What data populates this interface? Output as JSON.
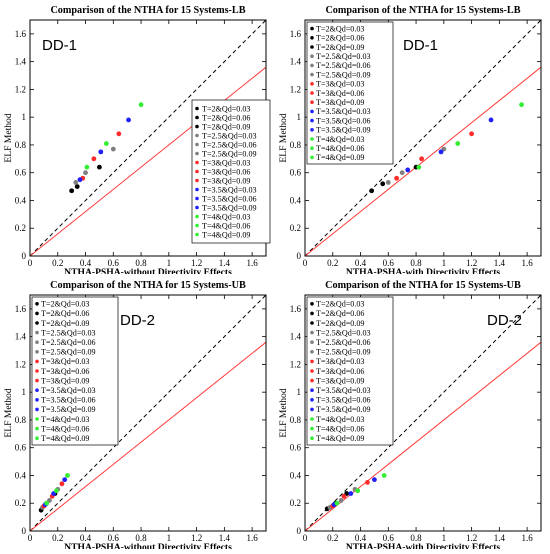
{
  "chart_data": [
    {
      "type": "scatter",
      "title": "Comparison of the NTHA for 15 Systems-LB",
      "xlabel": "NTHA-PSHA-without Directivity Effects",
      "ylabel": "ELF Method",
      "annotation": "DD-1",
      "xlim": [
        0,
        1.7
      ],
      "ylim": [
        0,
        1.7
      ],
      "xticks": [
        "0",
        "0.2",
        "0.4",
        "0.6",
        "0.8",
        "1",
        "1.2",
        "1.4",
        "1.6"
      ],
      "yticks": [
        "0",
        "0.2",
        "0.4",
        "0.6",
        "0.8",
        "1",
        "1.2",
        "1.4",
        "1.6"
      ],
      "legend_position": "right",
      "reference_lines": [
        {
          "style": "black-dashed",
          "slope": 1.0
        },
        {
          "style": "red-solid",
          "slope": 0.8
        }
      ],
      "series": [
        {
          "name": "T=2&Qd=0.03",
          "color": "#000000",
          "x": [
            0.3
          ],
          "y": [
            0.47
          ]
        },
        {
          "name": "T=2&Qd=0.06",
          "color": "#000000",
          "x": [
            0.34
          ],
          "y": [
            0.5
          ]
        },
        {
          "name": "T=2&Qd=0.09",
          "color": "#000000",
          "x": [
            0.5
          ],
          "y": [
            0.64
          ]
        },
        {
          "name": "T=2.5&Qd=0.03",
          "color": "#7f7f7f",
          "x": [
            0.33
          ],
          "y": [
            0.53
          ]
        },
        {
          "name": "T=2.5&Qd=0.06",
          "color": "#7f7f7f",
          "x": [
            0.4
          ],
          "y": [
            0.6
          ]
        },
        {
          "name": "T=2.5&Qd=0.09",
          "color": "#7f7f7f",
          "x": [
            0.6
          ],
          "y": [
            0.77
          ]
        },
        {
          "name": "T=3&Qd=0.03",
          "color": "#ff2a2a",
          "x": [
            0.38
          ],
          "y": [
            0.56
          ]
        },
        {
          "name": "T=3&Qd=0.06",
          "color": "#ff2a2a",
          "x": [
            0.46
          ],
          "y": [
            0.7
          ]
        },
        {
          "name": "T=3&Qd=0.09",
          "color": "#ff2a2a",
          "x": [
            0.64
          ],
          "y": [
            0.88
          ]
        },
        {
          "name": "T=3.5&Qd=0.03",
          "color": "#1f1fff",
          "x": [
            0.36
          ],
          "y": [
            0.55
          ]
        },
        {
          "name": "T=3.5&Qd=0.06",
          "color": "#1f1fff",
          "x": [
            0.51
          ],
          "y": [
            0.75
          ]
        },
        {
          "name": "T=3.5&Qd=0.09",
          "color": "#1f1fff",
          "x": [
            0.71
          ],
          "y": [
            0.98
          ]
        },
        {
          "name": "T=4&Qd=0.03",
          "color": "#33ee33",
          "x": [
            0.41
          ],
          "y": [
            0.64
          ]
        },
        {
          "name": "T=4&Qd=0.06",
          "color": "#33ee33",
          "x": [
            0.55
          ],
          "y": [
            0.81
          ]
        },
        {
          "name": "T=4&Qd=0.09",
          "color": "#33ee33",
          "x": [
            0.8
          ],
          "y": [
            1.09
          ]
        }
      ]
    },
    {
      "type": "scatter",
      "title": "Comparison of the NTHA for 15 Systems-LB",
      "xlabel": "NTHA-PSHA-with Directivity Effects",
      "ylabel": "ELF Method",
      "annotation": "DD-1",
      "xlim": [
        0,
        1.7
      ],
      "ylim": [
        0,
        1.7
      ],
      "xticks": [
        "0",
        "0.2",
        "0.4",
        "0.6",
        "0.8",
        "1",
        "1.2",
        "1.4",
        "1.6"
      ],
      "yticks": [
        "0",
        "0.2",
        "0.4",
        "0.6",
        "0.8",
        "1",
        "1.2",
        "1.4",
        "1.6"
      ],
      "legend_position": "top-left",
      "reference_lines": [
        {
          "style": "black-dashed",
          "slope": 1.0
        },
        {
          "style": "red-solid",
          "slope": 0.8
        }
      ],
      "series": [
        {
          "name": "T=2&Qd=0.03",
          "color": "#000000",
          "x": [
            0.48
          ],
          "y": [
            0.47
          ]
        },
        {
          "name": "T=2&Qd=0.06",
          "color": "#000000",
          "x": [
            0.56
          ],
          "y": [
            0.52
          ]
        },
        {
          "name": "T=2&Qd=0.09",
          "color": "#000000",
          "x": [
            0.8
          ],
          "y": [
            0.64
          ]
        },
        {
          "name": "T=2.5&Qd=0.03",
          "color": "#7f7f7f",
          "x": [
            0.6
          ],
          "y": [
            0.53
          ]
        },
        {
          "name": "T=2.5&Qd=0.06",
          "color": "#7f7f7f",
          "x": [
            0.7
          ],
          "y": [
            0.6
          ]
        },
        {
          "name": "T=2.5&Qd=0.09",
          "color": "#7f7f7f",
          "x": [
            1.0
          ],
          "y": [
            0.77
          ]
        },
        {
          "name": "T=3&Qd=0.03",
          "color": "#ff2a2a",
          "x": [
            0.66
          ],
          "y": [
            0.56
          ]
        },
        {
          "name": "T=3&Qd=0.06",
          "color": "#ff2a2a",
          "x": [
            0.84
          ],
          "y": [
            0.7
          ]
        },
        {
          "name": "T=3&Qd=0.09",
          "color": "#ff2a2a",
          "x": [
            1.2
          ],
          "y": [
            0.88
          ]
        },
        {
          "name": "T=3.5&Qd=0.03",
          "color": "#1f1fff",
          "x": [
            0.74
          ],
          "y": [
            0.62
          ]
        },
        {
          "name": "T=3.5&Qd=0.06",
          "color": "#1f1fff",
          "x": [
            0.98
          ],
          "y": [
            0.75
          ]
        },
        {
          "name": "T=3.5&Qd=0.09",
          "color": "#1f1fff",
          "x": [
            1.34
          ],
          "y": [
            0.98
          ]
        },
        {
          "name": "T=4&Qd=0.03",
          "color": "#33ee33",
          "x": [
            0.82
          ],
          "y": [
            0.64
          ]
        },
        {
          "name": "T=4&Qd=0.06",
          "color": "#33ee33",
          "x": [
            1.1
          ],
          "y": [
            0.81
          ]
        },
        {
          "name": "T=4&Qd=0.09",
          "color": "#33ee33",
          "x": [
            1.56
          ],
          "y": [
            1.09
          ]
        }
      ]
    },
    {
      "type": "scatter",
      "title": "Comparison of the NTHA for 15 Systems-UB",
      "xlabel": "NTHA-PSHA-without Directivity Effects",
      "ylabel": "ELF Method",
      "annotation": "DD-2",
      "xlim": [
        0,
        1.7
      ],
      "ylim": [
        0,
        1.7
      ],
      "xticks": [
        "0",
        "0.2",
        "0.4",
        "0.6",
        "0.8",
        "1",
        "1.2",
        "1.4",
        "1.6"
      ],
      "yticks": [
        "0",
        "0.2",
        "0.4",
        "0.6",
        "0.8",
        "1",
        "1.2",
        "1.4",
        "1.6"
      ],
      "legend_position": "top-left",
      "reference_lines": [
        {
          "style": "black-dashed",
          "slope": 1.0
        },
        {
          "style": "red-solid",
          "slope": 0.8
        }
      ],
      "series": [
        {
          "name": "T=2&Qd=0.03",
          "color": "#000000",
          "x": [
            0.08
          ],
          "y": [
            0.15
          ]
        },
        {
          "name": "T=2&Qd=0.06",
          "color": "#000000",
          "x": [
            0.12
          ],
          "y": [
            0.2
          ]
        },
        {
          "name": "T=2&Qd=0.09",
          "color": "#000000",
          "x": [
            0.18
          ],
          "y": [
            0.27
          ]
        },
        {
          "name": "T=2.5&Qd=0.03",
          "color": "#7f7f7f",
          "x": [
            0.09
          ],
          "y": [
            0.17
          ]
        },
        {
          "name": "T=2.5&Qd=0.06",
          "color": "#7f7f7f",
          "x": [
            0.14
          ],
          "y": [
            0.22
          ]
        },
        {
          "name": "T=2.5&Qd=0.09",
          "color": "#7f7f7f",
          "x": [
            0.2
          ],
          "y": [
            0.3
          ]
        },
        {
          "name": "T=3&Qd=0.03",
          "color": "#ff2a2a",
          "x": [
            0.1
          ],
          "y": [
            0.18
          ]
        },
        {
          "name": "T=3&Qd=0.06",
          "color": "#ff2a2a",
          "x": [
            0.16
          ],
          "y": [
            0.25
          ]
        },
        {
          "name": "T=3&Qd=0.09",
          "color": "#ff2a2a",
          "x": [
            0.23
          ],
          "y": [
            0.34
          ]
        },
        {
          "name": "T=3.5&Qd=0.03",
          "color": "#1f1fff",
          "x": [
            0.11
          ],
          "y": [
            0.19
          ]
        },
        {
          "name": "T=3.5&Qd=0.06",
          "color": "#1f1fff",
          "x": [
            0.17
          ],
          "y": [
            0.27
          ]
        },
        {
          "name": "T=3.5&Qd=0.09",
          "color": "#1f1fff",
          "x": [
            0.25
          ],
          "y": [
            0.37
          ]
        },
        {
          "name": "T=4&Qd=0.03",
          "color": "#33ee33",
          "x": [
            0.12
          ],
          "y": [
            0.2
          ]
        },
        {
          "name": "T=4&Qd=0.06",
          "color": "#33ee33",
          "x": [
            0.19
          ],
          "y": [
            0.29
          ]
        },
        {
          "name": "T=4&Qd=0.09",
          "color": "#33ee33",
          "x": [
            0.27
          ],
          "y": [
            0.4
          ]
        }
      ]
    },
    {
      "type": "scatter",
      "title": "Comparison of the NTHA for 15 Systems-UB",
      "xlabel": "NTHA-PSHA-with Directivity Effects",
      "ylabel": "ELF Method",
      "annotation": "DD-2",
      "xlim": [
        0,
        1.7
      ],
      "ylim": [
        0,
        1.7
      ],
      "xticks": [
        "0",
        "0.2",
        "0.4",
        "0.6",
        "0.8",
        "1",
        "1.2",
        "1.4",
        "1.6"
      ],
      "yticks": [
        "0",
        "0.2",
        "0.4",
        "0.6",
        "0.8",
        "1",
        "1.2",
        "1.4",
        "1.6"
      ],
      "legend_position": "top-left",
      "reference_lines": [
        {
          "style": "black-dashed",
          "slope": 1.0
        },
        {
          "style": "red-solid",
          "slope": 0.8
        }
      ],
      "series": [
        {
          "name": "T=2&Qd=0.03",
          "color": "#000000",
          "x": [
            0.16
          ],
          "y": [
            0.16
          ]
        },
        {
          "name": "T=2&Qd=0.06",
          "color": "#000000",
          "x": [
            0.22
          ],
          "y": [
            0.2
          ]
        },
        {
          "name": "T=2&Qd=0.09",
          "color": "#000000",
          "x": [
            0.3
          ],
          "y": [
            0.27
          ]
        },
        {
          "name": "T=2.5&Qd=0.03",
          "color": "#7f7f7f",
          "x": [
            0.18
          ],
          "y": [
            0.17
          ]
        },
        {
          "name": "T=2.5&Qd=0.06",
          "color": "#7f7f7f",
          "x": [
            0.26
          ],
          "y": [
            0.22
          ]
        },
        {
          "name": "T=2.5&Qd=0.09",
          "color": "#7f7f7f",
          "x": [
            0.36
          ],
          "y": [
            0.3
          ]
        },
        {
          "name": "T=3&Qd=0.03",
          "color": "#ff2a2a",
          "x": [
            0.2
          ],
          "y": [
            0.18
          ]
        },
        {
          "name": "T=3&Qd=0.06",
          "color": "#ff2a2a",
          "x": [
            0.28
          ],
          "y": [
            0.25
          ]
        },
        {
          "name": "T=3&Qd=0.09",
          "color": "#ff2a2a",
          "x": [
            0.45
          ],
          "y": [
            0.35
          ]
        },
        {
          "name": "T=3.5&Qd=0.03",
          "color": "#1f1fff",
          "x": [
            0.21
          ],
          "y": [
            0.19
          ]
        },
        {
          "name": "T=3.5&Qd=0.06",
          "color": "#1f1fff",
          "x": [
            0.33
          ],
          "y": [
            0.27
          ]
        },
        {
          "name": "T=3.5&Qd=0.09",
          "color": "#1f1fff",
          "x": [
            0.5
          ],
          "y": [
            0.37
          ]
        },
        {
          "name": "T=4&Qd=0.03",
          "color": "#33ee33",
          "x": [
            0.23
          ],
          "y": [
            0.2
          ]
        },
        {
          "name": "T=4&Qd=0.06",
          "color": "#33ee33",
          "x": [
            0.38
          ],
          "y": [
            0.29
          ]
        },
        {
          "name": "T=4&Qd=0.09",
          "color": "#33ee33",
          "x": [
            0.57
          ],
          "y": [
            0.4
          ]
        }
      ]
    }
  ]
}
